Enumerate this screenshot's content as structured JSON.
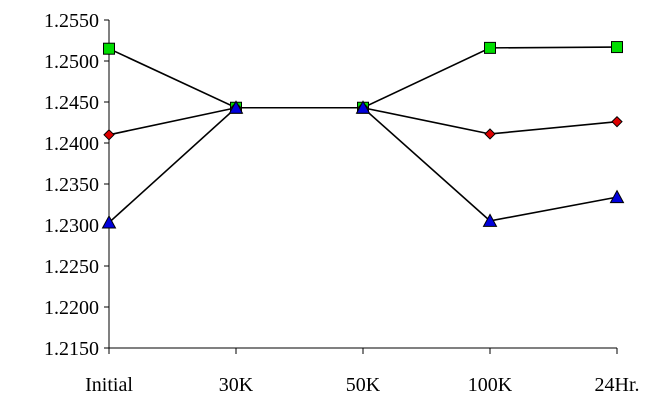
{
  "chart_data": {
    "type": "line",
    "title": "",
    "xlabel": "",
    "ylabel": "",
    "categories": [
      "Initial",
      "30K",
      "50K",
      "100K",
      "24Hr."
    ],
    "ylim": [
      1.215,
      1.255
    ],
    "yticks": [
      "1.2150",
      "1.2200",
      "1.2250",
      "1.2300",
      "1.2350",
      "1.2400",
      "1.2450",
      "1.2500",
      "1.2550"
    ],
    "ytick_values": [
      1.215,
      1.22,
      1.225,
      1.23,
      1.235,
      1.24,
      1.245,
      1.25,
      1.255
    ],
    "grid": false,
    "legend": "none",
    "series": [
      {
        "marker": "square",
        "color": "#00dd00",
        "values": [
          1.2515,
          1.2443,
          1.2443,
          1.2516,
          1.2517
        ]
      },
      {
        "marker": "diamond",
        "color": "#dd0000",
        "values": [
          1.241,
          1.2443,
          1.2443,
          1.2411,
          1.2426
        ]
      },
      {
        "marker": "triangle",
        "color": "#0000dd",
        "values": [
          1.2303,
          1.2443,
          1.2443,
          1.2305,
          1.2334
        ]
      }
    ]
  }
}
